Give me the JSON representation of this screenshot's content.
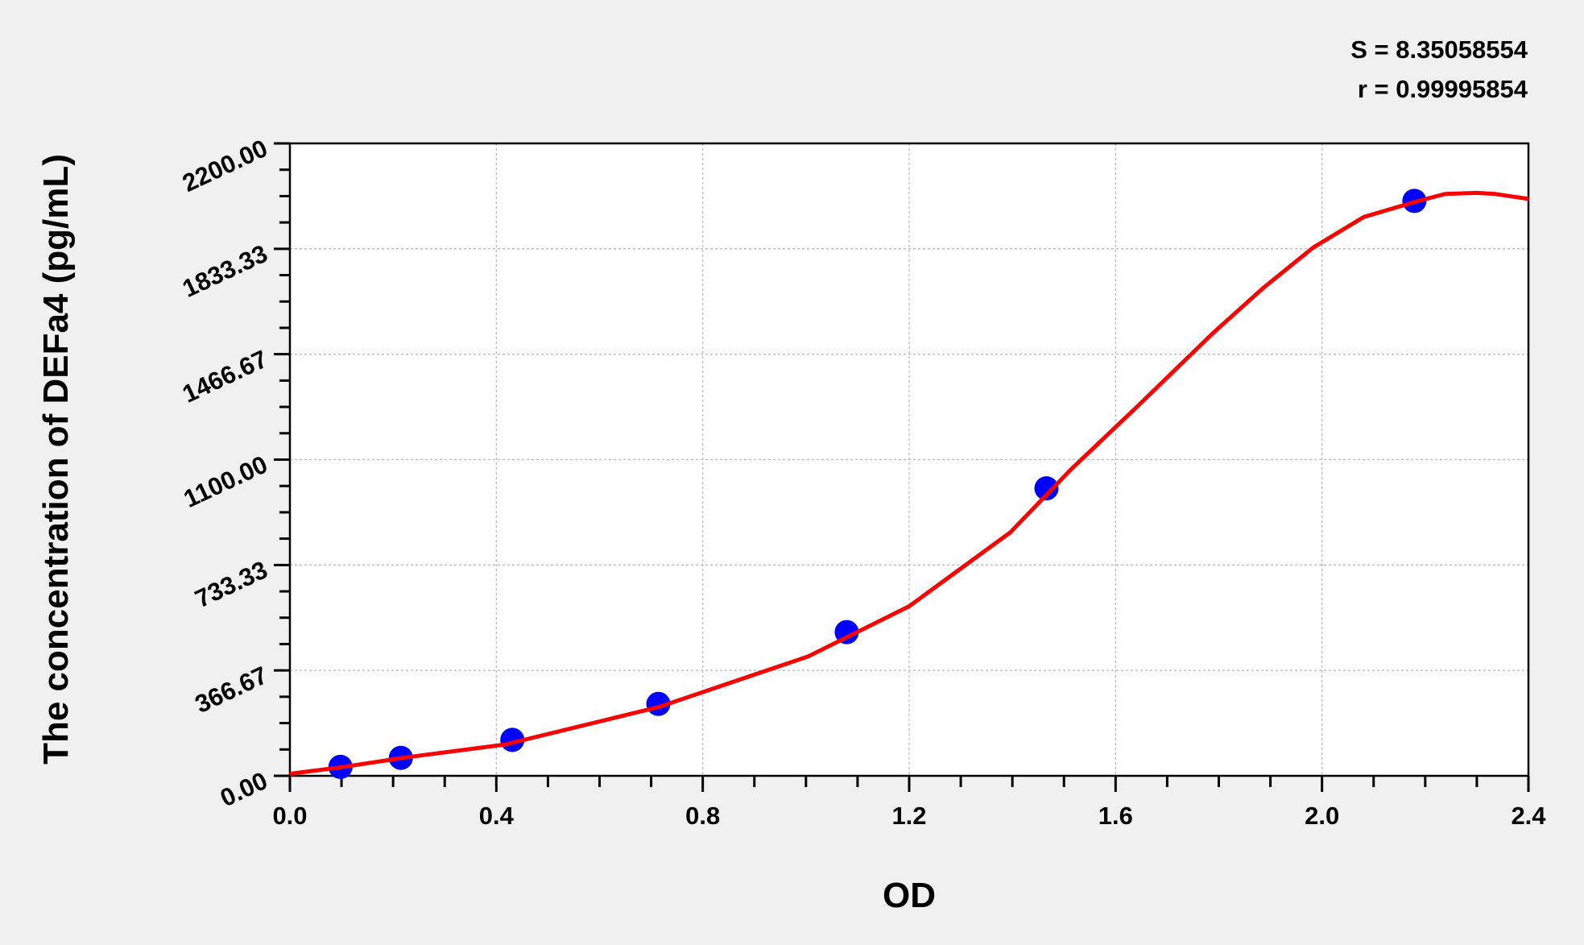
{
  "chart_data": {
    "type": "scatter",
    "title": "",
    "xlabel": "OD",
    "ylabel": "The concentration of DEFa4 (pg/mL)",
    "xlim": [
      0,
      2.4
    ],
    "ylim": [
      0,
      2200
    ],
    "x_ticks": [
      "0.0",
      "0.4",
      "0.8",
      "1.2",
      "1.6",
      "2.0",
      "2.4"
    ],
    "y_ticks": [
      "0.00",
      "366.67",
      "733.33",
      "1100.00",
      "1466.67",
      "1833.33",
      "2200.00"
    ],
    "grid": true,
    "stats": [
      "S = 8.35058554",
      "r = 0.99995854"
    ],
    "series": [
      {
        "type": "scatter",
        "color": "#0000ff",
        "x": [
          0.098,
          0.215,
          0.431,
          0.714,
          1.079,
          1.466,
          2.179
        ],
        "y": [
          31.25,
          62.5,
          125,
          250,
          500,
          1000,
          2000
        ]
      },
      {
        "type": "line",
        "color": "#ff0000",
        "x": [
          0,
          0.1,
          0.221,
          0.417,
          0.714,
          1.004,
          1.2,
          1.396,
          1.513,
          1.641,
          1.788,
          1.886,
          1.983,
          2.081,
          2.179,
          2.238,
          2.3,
          2.336,
          2.4
        ],
        "y": [
          7,
          30,
          63,
          109,
          239,
          415,
          590,
          847,
          1065,
          1283,
          1539,
          1697,
          1838,
          1944,
          1996,
          2024,
          2028,
          2024,
          2007
        ]
      }
    ]
  }
}
